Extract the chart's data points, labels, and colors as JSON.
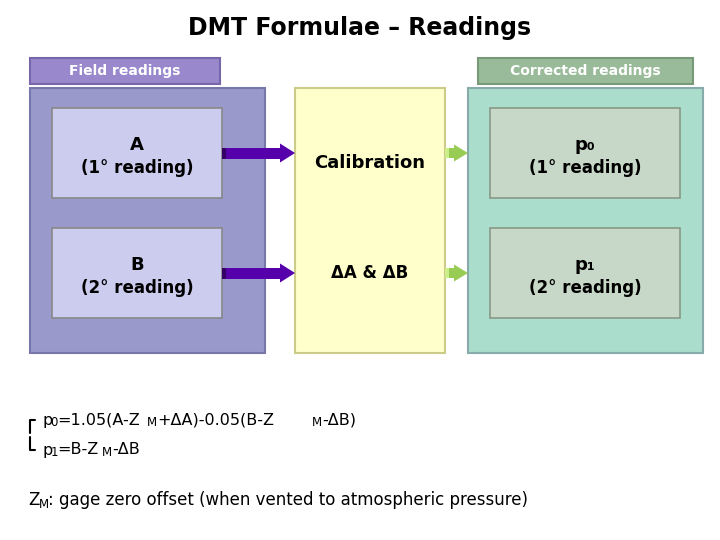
{
  "title": "DMT Formulae – Readings",
  "title_fontsize": 17,
  "bg_color": "#ffffff",
  "field_label": "Field readings",
  "field_label_bg": "#9988cc",
  "field_label_border": "#7766aa",
  "field_box_bg": "#9999cc",
  "field_box_border": "#7777aa",
  "A_label_line1": "A",
  "A_label_line2": "(1° reading)",
  "B_label_line1": "B",
  "B_label_line2": "(2° reading)",
  "inner_A_bg": "#ccccee",
  "inner_B_bg": "#ccccee",
  "inner_box_border": "#888888",
  "calib_label_top": "Calibration",
  "calib_label_bot": "ΔA & ΔB",
  "calib_bg": "#ffffcc",
  "calib_border": "#cccc88",
  "corrected_label": "Corrected readings",
  "corrected_label_bg": "#99bb99",
  "corrected_label_border": "#779977",
  "corrected_box_bg": "#aaddcc",
  "corrected_box_border": "#88aaaa",
  "p0_label_line1": "p₀",
  "p0_label_line2": "(1° reading)",
  "p1_label_line1": "p₁",
  "p1_label_line2": "(2° reading)",
  "output_box_bg": "#c8d8c8",
  "output_box_border": "#889988",
  "arrow_purple": "#5500aa",
  "arrow_green": "#99cc55",
  "formula1_parts": [
    "p",
    "0",
    "=1.05(A-Z",
    "M",
    "+ΔA)-0.05(B-Z",
    "M",
    "-ΔB)"
  ],
  "formula2_parts": [
    "p",
    "1",
    "=B-Z",
    "M",
    "-ΔB"
  ],
  "zm_line1": "Z",
  "zm_line2": "M",
  "zm_rest": ": gage zero offset (when vented to atmospheric pressure)",
  "text_color": "#000000"
}
